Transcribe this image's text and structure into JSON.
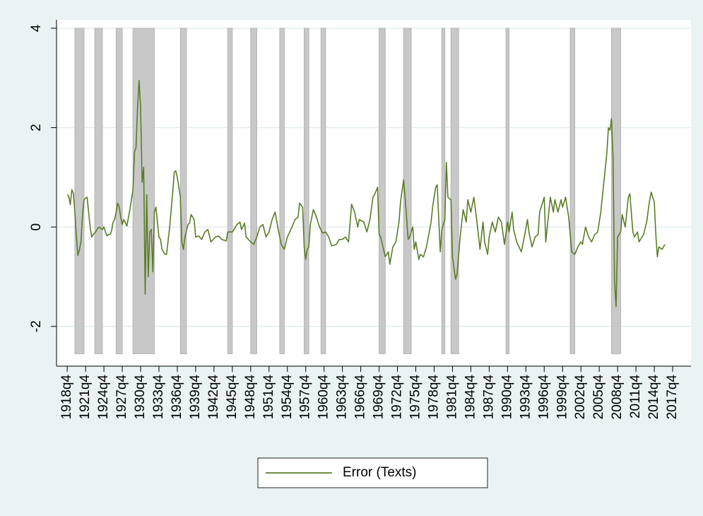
{
  "chart_data": {
    "type": "line",
    "xlim": [
      "1917q1",
      "2020q4"
    ],
    "ylim": [
      -2.8,
      4.17
    ],
    "yticks": [
      -2,
      0,
      2,
      4
    ],
    "xticks": [
      "1918q4",
      "1921q4",
      "1924q4",
      "1927q4",
      "1930q4",
      "1933q4",
      "1936q4",
      "1939q4",
      "1942q4",
      "1945q4",
      "1948q4",
      "1951q4",
      "1954q4",
      "1957q4",
      "1960q4",
      "1963q4",
      "1966q4",
      "1969q4",
      "1972q4",
      "1975q4",
      "1978q4",
      "1981q4",
      "1984q4",
      "1987q4",
      "1990q4",
      "1993q4",
      "1996q4",
      "1999q4",
      "2002q4",
      "2005q4",
      "2008q4",
      "2011q4",
      "2014q4",
      "2017q4"
    ],
    "grid": true,
    "shade_color": "#c8c8c8",
    "shade_ylim": [
      -2.55,
      4
    ],
    "shaded_periods": [
      {
        "start": "1920q1",
        "end": "1921q3"
      },
      {
        "start": "1923q2",
        "end": "1924q3"
      },
      {
        "start": "1926q4",
        "end": "1927q4"
      },
      {
        "start": "1929q3",
        "end": "1933q1"
      },
      {
        "start": "1937q2",
        "end": "1938q2"
      },
      {
        "start": "1945q1",
        "end": "1945q4"
      },
      {
        "start": "1948q4",
        "end": "1949q4"
      },
      {
        "start": "1953q3",
        "end": "1954q2"
      },
      {
        "start": "1957q3",
        "end": "1958q2"
      },
      {
        "start": "1960q2",
        "end": "1961q1"
      },
      {
        "start": "1969q4",
        "end": "1970q4"
      },
      {
        "start": "1973q4",
        "end": "1975q1"
      },
      {
        "start": "1980q1",
        "end": "1980q3"
      },
      {
        "start": "1981q3",
        "end": "1982q4"
      },
      {
        "start": "1990q3",
        "end": "1991q1"
      },
      {
        "start": "2001q1",
        "end": "2001q4"
      },
      {
        "start": "2007q4",
        "end": "2009q2"
      }
    ],
    "x": [
      "1918q4",
      "1919q1",
      "1919q2",
      "1919q3",
      "1919q4",
      "1920q1",
      "1920q2",
      "1920q3",
      "1920q4",
      "1921q1",
      "1921q2",
      "1921q3",
      "1921q4",
      "1922q1",
      "1922q2",
      "1922q3",
      "1922q4",
      "1923q1",
      "1923q2",
      "1923q3",
      "1923q4",
      "1924q1",
      "1924q2",
      "1924q3",
      "1924q4",
      "1925q1",
      "1925q2",
      "1925q3",
      "1925q4",
      "1926q1",
      "1926q2",
      "1926q3",
      "1926q4",
      "1927q1",
      "1927q2",
      "1927q3",
      "1927q4",
      "1928q1",
      "1928q3",
      "1929q1",
      "1929q3",
      "1929q4",
      "1930q1",
      "1930q2",
      "1930q3",
      "1930q4",
      "1931q1",
      "1931q2",
      "1931q3",
      "1931q4",
      "1932q1",
      "1932q2",
      "1932q3",
      "1932q4",
      "1933q1",
      "1933q2",
      "1933q4",
      "1934q1",
      "1934q2",
      "1934q4",
      "1935q1",
      "1935q3",
      "1936q1",
      "1936q2",
      "1936q3",
      "1936q4",
      "1937q2",
      "1937q3",
      "1937q4",
      "1938q1",
      "1938q3",
      "1938q4",
      "1939q1",
      "1939q3",
      "1939q4",
      "1940q2",
      "1940q4",
      "1941q2",
      "1941q4",
      "1942q2",
      "1943q1",
      "1943q3",
      "1944q1",
      "1944q4",
      "1945q1",
      "1945q4",
      "1946q3",
      "1947q1",
      "1947q2",
      "1947q4",
      "1948q1",
      "1948q4",
      "1949q2",
      "1949q4",
      "1950q2",
      "1950q4",
      "1951q2",
      "1951q4",
      "1952q2",
      "1952q4",
      "1953q2",
      "1953q4",
      "1954q2",
      "1954q4",
      "1955q3",
      "1956q1",
      "1956q3",
      "1956q4",
      "1957q2",
      "1957q3",
      "1957q4",
      "1958q1",
      "1958q2",
      "1958q3",
      "1959q1",
      "1959q3",
      "1960q1",
      "1960q3",
      "1961q1",
      "1961q3",
      "1962q1",
      "1962q4",
      "1963q2",
      "1963q4",
      "1964q2",
      "1964q4",
      "1965q2",
      "1965q4",
      "1966q2",
      "1966q3",
      "1967q2",
      "1967q4",
      "1968q2",
      "1968q4",
      "1969q1",
      "1969q3",
      "1969q4",
      "1970q1",
      "1970q4",
      "1971q2",
      "1971q3",
      "1972q1",
      "1972q3",
      "1973q1",
      "1973q2",
      "1973q4",
      "1974q1",
      "1974q3",
      "1974q4",
      "1975q2",
      "1975q3",
      "1975q4",
      "1976q2",
      "1976q3",
      "1977q1",
      "1977q3",
      "1978q2",
      "1978q3",
      "1979q1",
      "1979q2",
      "1979q4",
      "1980q1",
      "1980q3",
      "1980q4",
      "1981q1",
      "1981q3",
      "1981q4",
      "1982q2",
      "1982q3",
      "1983q1",
      "1983q3",
      "1984q1",
      "1984q2",
      "1984q4",
      "1985q2",
      "1985q4",
      "1986q2",
      "1986q4",
      "1987q1",
      "1987q3",
      "1987q4",
      "1988q2",
      "1988q4",
      "1989q2",
      "1989q4",
      "1990q2",
      "1990q4",
      "1991q1",
      "1991q3",
      "1991q4",
      "1992q2",
      "1993q1",
      "1993q3",
      "1994q1",
      "1994q2",
      "1994q4",
      "1995q2",
      "1995q4",
      "1996q1",
      "1996q4",
      "1997q1",
      "1997q3",
      "1997q4",
      "1998q2",
      "1998q3",
      "1999q1",
      "1999q3",
      "1999q4",
      "2000q2",
      "2000q4",
      "2001q2",
      "2001q4",
      "2002q2",
      "2002q4",
      "2003q1",
      "2003q3",
      "2004q1",
      "2004q3",
      "2005q1",
      "2005q3",
      "2006q1",
      "2006q3",
      "2007q1",
      "2007q2",
      "2007q3",
      "2007q4",
      "2008q1",
      "2008q2",
      "2008q3",
      "2008q4",
      "2009q2",
      "2009q3",
      "2010q1",
      "2010q3",
      "2010q4",
      "2011q2",
      "2011q3",
      "2012q1",
      "2012q2",
      "2013q1",
      "2013q3",
      "2014q1",
      "2014q2",
      "2014q4",
      "2015q1",
      "2015q2",
      "2015q3",
      "2016q1",
      "2016q3"
    ],
    "series": [
      {
        "name": "Error (Texts)",
        "color": "#5a7d27",
        "values": [
          0.65,
          0.62,
          0.45,
          0.75,
          0.68,
          0.3,
          -0.2,
          -0.57,
          -0.45,
          -0.3,
          0.25,
          0.55,
          0.58,
          0.6,
          0.3,
          0.0,
          -0.2,
          -0.15,
          -0.12,
          -0.08,
          -0.02,
          0.0,
          -0.03,
          -0.05,
          0.0,
          -0.1,
          -0.18,
          -0.15,
          -0.15,
          -0.08,
          0.1,
          0.15,
          0.3,
          0.48,
          0.4,
          0.2,
          0.05,
          0.15,
          0.02,
          0.35,
          0.75,
          1.5,
          1.6,
          2.4,
          2.95,
          2.4,
          0.9,
          1.2,
          -1.35,
          0.65,
          -1.0,
          -0.1,
          -0.05,
          -0.9,
          0.3,
          0.4,
          -0.2,
          -0.25,
          -0.45,
          -0.55,
          -0.55,
          0.0,
          0.7,
          1.1,
          1.13,
          1.0,
          0.6,
          -0.3,
          -0.45,
          -0.2,
          0.05,
          0.08,
          0.25,
          0.15,
          -0.2,
          -0.18,
          -0.25,
          -0.1,
          -0.05,
          -0.3,
          -0.2,
          -0.18,
          -0.25,
          -0.28,
          -0.1,
          -0.1,
          0.05,
          0.1,
          -0.05,
          0.08,
          -0.2,
          -0.3,
          -0.35,
          -0.2,
          0.0,
          0.05,
          -0.2,
          -0.1,
          0.15,
          0.3,
          -0.05,
          -0.35,
          -0.45,
          -0.2,
          0.0,
          0.15,
          0.2,
          0.48,
          0.4,
          -0.4,
          -0.65,
          -0.45,
          -0.4,
          0.05,
          0.35,
          0.2,
          0.0,
          -0.12,
          -0.1,
          -0.2,
          -0.38,
          -0.35,
          -0.25,
          -0.25,
          -0.2,
          -0.3,
          0.46,
          0.3,
          0.0,
          0.15,
          0.1,
          -0.1,
          0.15,
          0.6,
          0.65,
          0.8,
          -0.15,
          -0.2,
          -0.6,
          -0.5,
          -0.75,
          -0.4,
          -0.3,
          0.1,
          0.5,
          0.95,
          0.6,
          -0.25,
          -0.2,
          0.0,
          -0.45,
          -0.3,
          -0.65,
          -0.55,
          -0.6,
          -0.4,
          0.1,
          0.4,
          0.8,
          0.85,
          -0.5,
          -0.05,
          0.15,
          1.3,
          0.6,
          0.55,
          -0.6,
          -1.05,
          -0.95,
          -0.2,
          0.35,
          0.1,
          0.55,
          0.3,
          0.6,
          0.1,
          -0.45,
          0.1,
          -0.3,
          -0.55,
          -0.2,
          0.1,
          -0.1,
          0.2,
          0.1,
          -0.35,
          0.1,
          -0.1,
          0.3,
          -0.05,
          -0.3,
          -0.5,
          -0.2,
          0.15,
          -0.1,
          -0.4,
          -0.2,
          -0.15,
          0.3,
          0.6,
          -0.3,
          0.3,
          0.6,
          0.3,
          0.55,
          0.3,
          0.55,
          0.4,
          0.6,
          0.2,
          -0.5,
          -0.55,
          -0.4,
          -0.3,
          -0.35,
          0.0,
          -0.2,
          -0.3,
          -0.15,
          -0.1,
          0.3,
          0.9,
          1.5,
          2.0,
          1.95,
          2.18,
          1.4,
          -1.1,
          -1.6,
          -0.2,
          -0.1,
          0.25,
          0.0,
          0.6,
          0.67,
          -0.1,
          -0.2,
          -0.1,
          -0.3,
          -0.15,
          0.1,
          0.55,
          0.7,
          0.5,
          -0.15,
          -0.6,
          -0.4,
          -0.45,
          -0.35
        ]
      }
    ]
  }
}
